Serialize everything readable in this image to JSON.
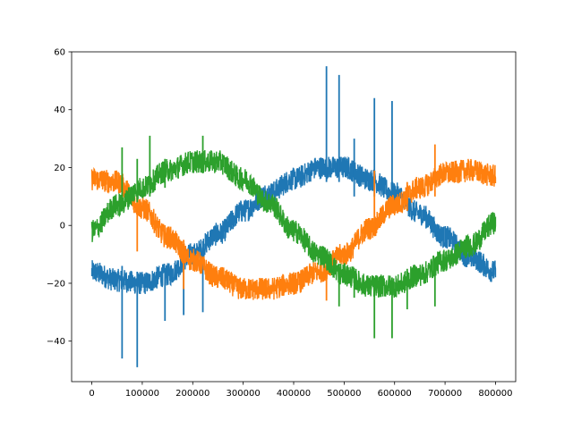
{
  "chart_data": {
    "type": "line",
    "title": "",
    "xlabel": "",
    "ylabel": "",
    "xlim": [
      -40000,
      840000
    ],
    "ylim": [
      -54,
      60
    ],
    "x_ticks": [
      0,
      100000,
      200000,
      300000,
      400000,
      500000,
      600000,
      700000,
      800000
    ],
    "x_tick_labels": [
      "0",
      "100000",
      "200000",
      "300000",
      "400000",
      "500000",
      "600000",
      "700000",
      "800000"
    ],
    "y_ticks": [
      -40,
      -20,
      0,
      20,
      40,
      60
    ],
    "y_tick_labels": [
      "−40",
      "−20",
      "0",
      "20",
      "40",
      "60"
    ],
    "grid": false,
    "legend": false,
    "series": [
      {
        "color": "#1f77b4",
        "x": [
          0,
          50000,
          100000,
          150000,
          200000,
          250000,
          300000,
          350000,
          400000,
          450000,
          500000,
          550000,
          600000,
          650000,
          700000,
          750000,
          800000
        ],
        "y": [
          -16,
          -19,
          -20,
          -17,
          -10,
          -3,
          5,
          11,
          16,
          20,
          20,
          16,
          11,
          4,
          -4,
          -11,
          -16
        ],
        "band": 4,
        "spikes": [
          {
            "x": 60000,
            "low": -46,
            "high": -14
          },
          {
            "x": 90000,
            "low": -49,
            "high": -16
          },
          {
            "x": 145000,
            "low": -33,
            "high": -15
          },
          {
            "x": 182000,
            "low": -31,
            "high": -12
          },
          {
            "x": 220000,
            "low": -30,
            "high": -8
          },
          {
            "x": 465000,
            "low": 15,
            "high": 55
          },
          {
            "x": 490000,
            "low": 15,
            "high": 52
          },
          {
            "x": 520000,
            "low": 10,
            "high": 30
          },
          {
            "x": 560000,
            "low": 10,
            "high": 44
          },
          {
            "x": 595000,
            "low": 8,
            "high": 43
          }
        ]
      },
      {
        "color": "#ff7f0e",
        "x": [
          0,
          50000,
          100000,
          150000,
          200000,
          250000,
          300000,
          350000,
          400000,
          450000,
          500000,
          550000,
          600000,
          650000,
          700000,
          750000,
          800000
        ],
        "y": [
          16,
          15,
          6,
          -4,
          -12,
          -18,
          -22,
          -22,
          -20,
          -16,
          -10,
          -1,
          7,
          13,
          18,
          19,
          17
        ],
        "band": 4,
        "spikes": [
          {
            "x": 90000,
            "low": -9,
            "high": 10
          },
          {
            "x": 182000,
            "low": -22,
            "high": -5
          },
          {
            "x": 465000,
            "low": -26,
            "high": -15
          },
          {
            "x": 560000,
            "low": -2,
            "high": 19
          },
          {
            "x": 625000,
            "low": 5,
            "high": 15
          },
          {
            "x": 680000,
            "low": 10,
            "high": 28
          }
        ]
      },
      {
        "color": "#2ca02c",
        "x": [
          0,
          50000,
          100000,
          150000,
          200000,
          250000,
          300000,
          350000,
          400000,
          450000,
          500000,
          550000,
          600000,
          650000,
          700000,
          750000,
          800000
        ],
        "y": [
          -2,
          7,
          13,
          19,
          22,
          22,
          16,
          8,
          -2,
          -10,
          -17,
          -21,
          -21,
          -17,
          -12,
          -7,
          1
        ],
        "band": 4,
        "spikes": [
          {
            "x": 60000,
            "low": 5,
            "high": 27
          },
          {
            "x": 90000,
            "low": 8,
            "high": 23
          },
          {
            "x": 115000,
            "low": 10,
            "high": 31
          },
          {
            "x": 145000,
            "low": 13,
            "high": 23
          },
          {
            "x": 220000,
            "low": 18,
            "high": 31
          },
          {
            "x": 490000,
            "low": -28,
            "high": -15
          },
          {
            "x": 520000,
            "low": -25,
            "high": -15
          },
          {
            "x": 560000,
            "low": -39,
            "high": -18
          },
          {
            "x": 595000,
            "low": -39,
            "high": -18
          },
          {
            "x": 625000,
            "low": -29,
            "high": -15
          },
          {
            "x": 680000,
            "low": -28,
            "high": -12
          }
        ]
      }
    ]
  }
}
